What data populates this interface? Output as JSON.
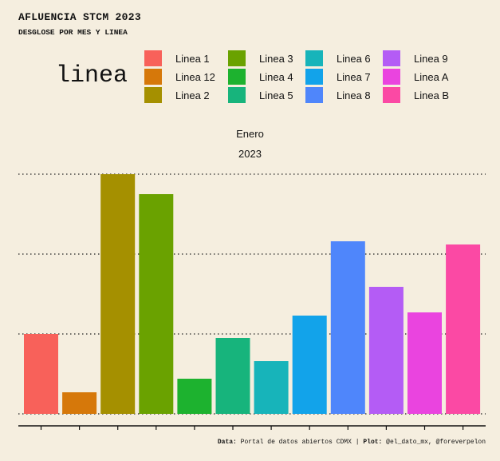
{
  "header": {
    "title": "AFLUENCIA STCM 2023",
    "subtitle": "DESGLOSE POR MES Y LINEA"
  },
  "legend": {
    "title": "linea",
    "items": [
      {
        "label": "Linea 1",
        "color": "#f8615a"
      },
      {
        "label": "Linea 12",
        "color": "#d6780a"
      },
      {
        "label": "Linea 2",
        "color": "#a59000"
      },
      {
        "label": "Linea 3",
        "color": "#6aa200"
      },
      {
        "label": "Linea 4",
        "color": "#1db22f"
      },
      {
        "label": "Linea 5",
        "color": "#17b47c"
      },
      {
        "label": "Linea 6",
        "color": "#17b4ba"
      },
      {
        "label": "Linea 7",
        "color": "#12a3ea"
      },
      {
        "label": "Linea 8",
        "color": "#4f86fb"
      },
      {
        "label": "Linea 9",
        "color": "#b45cf5"
      },
      {
        "label": "Linea A",
        "color": "#ea44df"
      },
      {
        "label": "Linea B",
        "color": "#fb49a4"
      }
    ]
  },
  "facet": {
    "month": "Enero",
    "year": "2023"
  },
  "chart_data": {
    "type": "bar",
    "categories": [
      "Linea 1",
      "Linea 12",
      "Linea 2",
      "Linea 3",
      "Linea 4",
      "Linea 5",
      "Linea 6",
      "Linea 7",
      "Linea 8",
      "Linea 9",
      "Linea A",
      "Linea B"
    ],
    "values": [
      100,
      27,
      300,
      275,
      44,
      95,
      66,
      123,
      216,
      159,
      127,
      212
    ],
    "ylim": [
      0,
      300
    ],
    "gridlines": [
      0,
      100,
      200,
      300
    ],
    "y_tick_labels": "hidden",
    "x_tick_labels": "hidden",
    "grid": "horizontal dotted",
    "legend_position": "top"
  },
  "caption": {
    "data_label": "Data:",
    "data_text": "Portal de datos abiertos CDMX",
    "sep": "|",
    "plot_label": "Plot:",
    "plot_text": "@el_dato_mx, @foreverpelon"
  }
}
